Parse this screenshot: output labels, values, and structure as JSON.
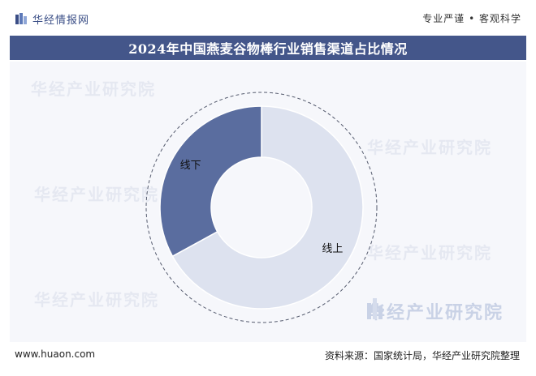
{
  "header": {
    "logo_text": "华经情报网",
    "tagline": "专业严谨 • 客观科学",
    "title": "2024年中国燕麦谷物棒行业销售渠道占比情况"
  },
  "watermark": {
    "text": "华经产业研究院"
  },
  "footer": {
    "url": "www.huaon.com",
    "source": "资料来源：国家统计局，华经产业研究院整理"
  },
  "colors": {
    "title_band": "#44568a",
    "slice_online": "#dde2ef",
    "slice_offline": "#5a6d9f",
    "plot_bg": "#f6f7fb"
  },
  "chart_data": {
    "type": "pie",
    "subtype": "donut",
    "categories": [
      "线上",
      "线下"
    ],
    "values": [
      67,
      33
    ],
    "title": "2024年中国燕麦谷物棒行业销售渠道占比情况",
    "legend": "none"
  }
}
